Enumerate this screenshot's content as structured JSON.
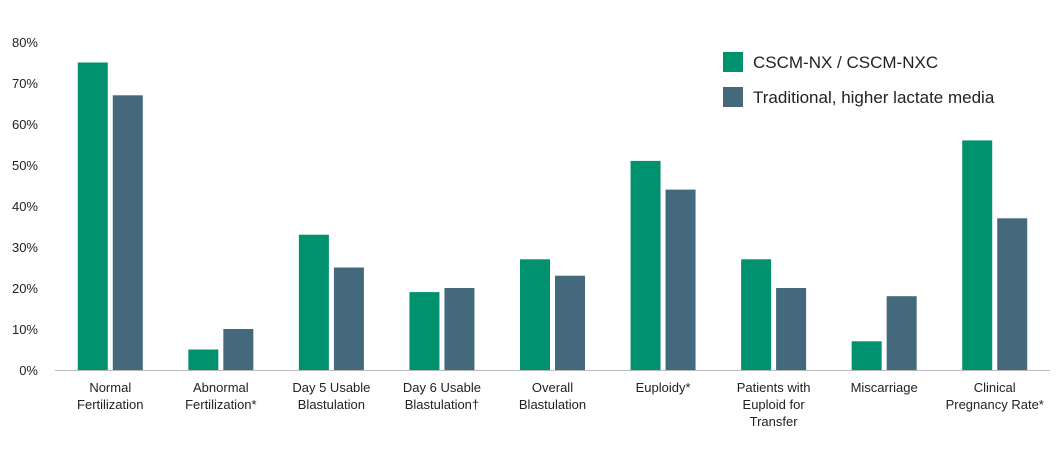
{
  "chart_data": {
    "type": "bar",
    "title": "",
    "xlabel": "",
    "ylabel": "",
    "ylim": [
      0,
      80
    ],
    "y_ticks": [
      "0%",
      "10%",
      "20%",
      "30%",
      "40%",
      "50%",
      "60%",
      "70%",
      "80%"
    ],
    "grid": false,
    "legend_position": "top-right",
    "categories": [
      [
        "Normal",
        "Fertilization"
      ],
      [
        "Abnormal",
        "Fertilization*"
      ],
      [
        "Day 5 Usable",
        "Blastulation"
      ],
      [
        "Day 6 Usable",
        "Blastulation†"
      ],
      [
        "Overall",
        "Blastulation"
      ],
      [
        "Euploidy*"
      ],
      [
        "Patients with",
        "Euploid for",
        "Transfer"
      ],
      [
        "Miscarriage"
      ],
      [
        "Clinical",
        "Pregnancy Rate*"
      ]
    ],
    "series": [
      {
        "name": "CSCM-NX / CSCM-NXC",
        "color": "#00916e",
        "values": [
          75,
          5,
          33,
          19,
          27,
          51,
          27,
          7,
          56
        ]
      },
      {
        "name": "Traditional, higher lactate media",
        "color": "#44687c",
        "values": [
          67,
          10,
          25,
          20,
          23,
          44,
          20,
          18,
          37
        ]
      }
    ]
  }
}
